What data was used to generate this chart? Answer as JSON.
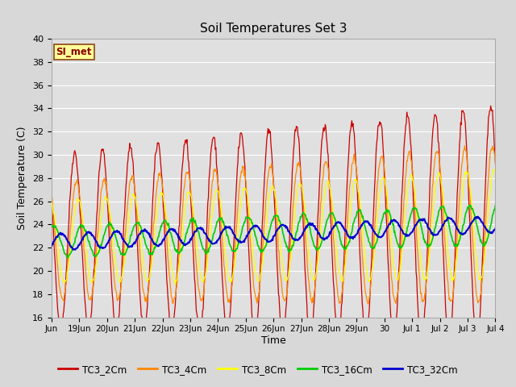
{
  "title": "Soil Temperatures Set 3",
  "xlabel": "Time",
  "ylabel": "Soil Temperature (C)",
  "ylim": [
    16,
    40
  ],
  "yticks": [
    16,
    18,
    20,
    22,
    24,
    26,
    28,
    30,
    32,
    34,
    36,
    38,
    40
  ],
  "bg_color": "#d8d8d8",
  "plot_bg_color": "#e0e0e0",
  "grid_color": "#ffffff",
  "line_colors": {
    "TC3_2Cm": "#cc0000",
    "TC3_4Cm": "#ff8800",
    "TC3_8Cm": "#ffff00",
    "TC3_16Cm": "#00cc00",
    "TC3_32Cm": "#0000cc"
  },
  "annotation_text": "SI_met",
  "annotation_bg": "#ffff99",
  "annotation_border": "#cc0000",
  "x_tick_labels": [
    "Jun",
    "19Jun",
    "20Jun",
    "21Jun",
    "22Jun",
    "23Jun",
    "24Jun",
    "25Jun",
    "26Jun",
    "27Jun",
    "28Jun",
    "29Jun",
    "30",
    "Jul 1",
    "Jul 2",
    "Jul 3",
    "Jul 4"
  ],
  "tick_positions": [
    0,
    1,
    2,
    3,
    4,
    5,
    6,
    7,
    8,
    9,
    10,
    11,
    12,
    13,
    14,
    15,
    16
  ],
  "legend_labels": [
    "TC3_2Cm",
    "TC3_4Cm",
    "TC3_8Cm",
    "TC3_16Cm",
    "TC3_32Cm"
  ]
}
